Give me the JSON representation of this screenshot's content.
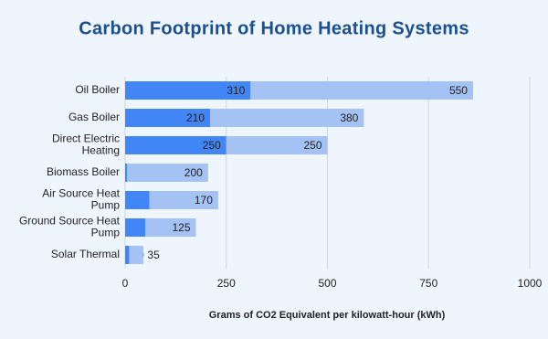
{
  "chart_data": {
    "type": "stacked-bar-horizontal",
    "title": "Carbon Footprint of Home Heating Systems",
    "x_label": "Grams of CO2 Equivalent per kilowatt-hour (kWh)",
    "categories": [
      "Oil Boiler",
      "Gas Boiler",
      "Direct Electric Heating",
      "Biomass Boiler",
      "Air Source Heat Pump",
      "Ground Source Heat Pump",
      "Solar Thermal"
    ],
    "series": [
      {
        "color": "#4285f4",
        "label_color": "#ffffff",
        "values": [
          310,
          210,
          250,
          5,
          60,
          50,
          10
        ]
      },
      {
        "color": "#a4c2f4",
        "label_color": "#222222",
        "values": [
          550,
          380,
          250,
          200,
          170,
          125,
          35
        ]
      }
    ],
    "xlim": [
      0,
      1000
    ],
    "xticks": [
      0,
      250,
      500,
      750,
      1000
    ],
    "grid": true
  }
}
